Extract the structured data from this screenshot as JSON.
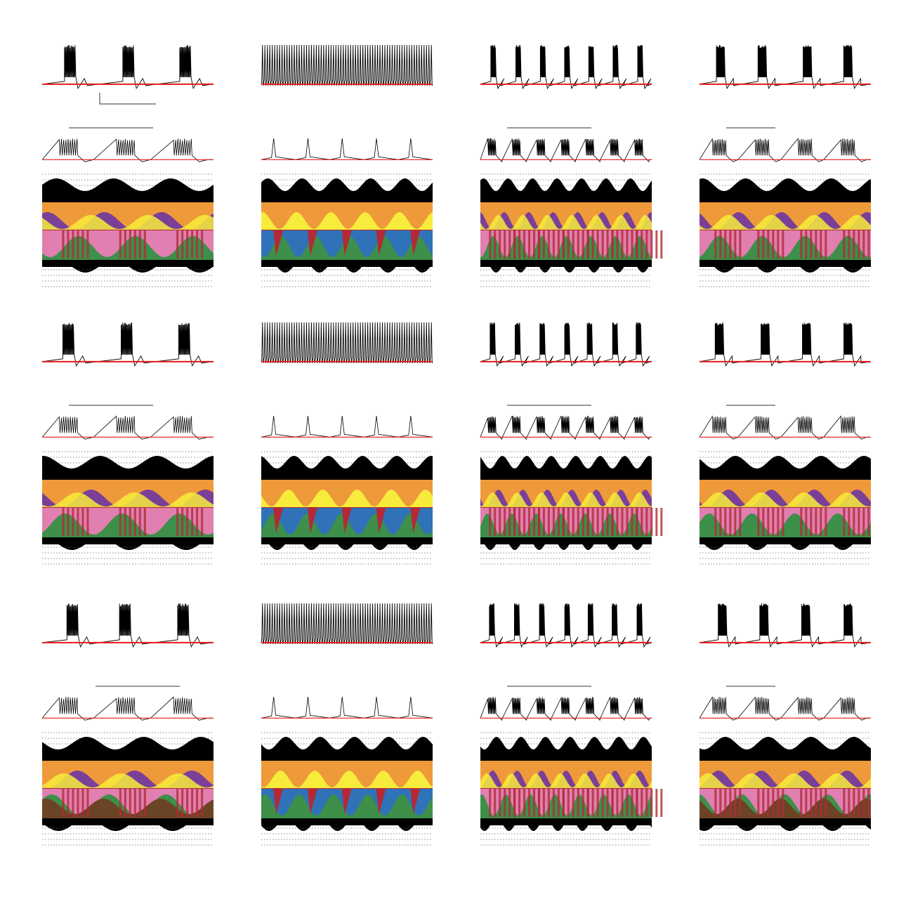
{
  "colors": {
    "voltage_trace": "#000000",
    "threshold_line": "#e3191c",
    "dotted_grid": "#666666",
    "black_band": "#000000",
    "orange": "#ee9a3a",
    "purple": "#7b3f98",
    "yellow": "#f7ec3b",
    "red_bar": "#b22a35",
    "pink": "#e07fb0",
    "green": "#3d8f4a",
    "blue": "#2f72b8",
    "brown": "#6b4426"
  },
  "grid": {
    "columns": 4,
    "rows": 3,
    "panels": [
      {
        "row": 0,
        "col": 0,
        "pattern": "burst",
        "icons": "currentscape-burst"
      },
      {
        "row": 0,
        "col": 1,
        "pattern": "tonic",
        "icons": "currentscape-tonic"
      },
      {
        "row": 0,
        "col": 2,
        "pattern": "burst",
        "icons": "currentscape-burst"
      },
      {
        "row": 0,
        "col": 3,
        "pattern": "burst",
        "icons": "currentscape-burst"
      },
      {
        "row": 1,
        "col": 0,
        "pattern": "burst",
        "icons": "currentscape-burst"
      },
      {
        "row": 1,
        "col": 1,
        "pattern": "tonic",
        "icons": "currentscape-tonic"
      },
      {
        "row": 1,
        "col": 2,
        "pattern": "burst",
        "icons": "currentscape-burst"
      },
      {
        "row": 1,
        "col": 3,
        "pattern": "burst",
        "icons": "currentscape-burst"
      },
      {
        "row": 2,
        "col": 0,
        "pattern": "burst",
        "icons": "currentscape-burst"
      },
      {
        "row": 2,
        "col": 1,
        "pattern": "tonic",
        "icons": "currentscape-tonic"
      },
      {
        "row": 2,
        "col": 2,
        "pattern": "burst",
        "icons": "currentscape-burst"
      },
      {
        "row": 2,
        "col": 3,
        "pattern": "burst",
        "icons": "currentscape-burst"
      }
    ]
  }
}
